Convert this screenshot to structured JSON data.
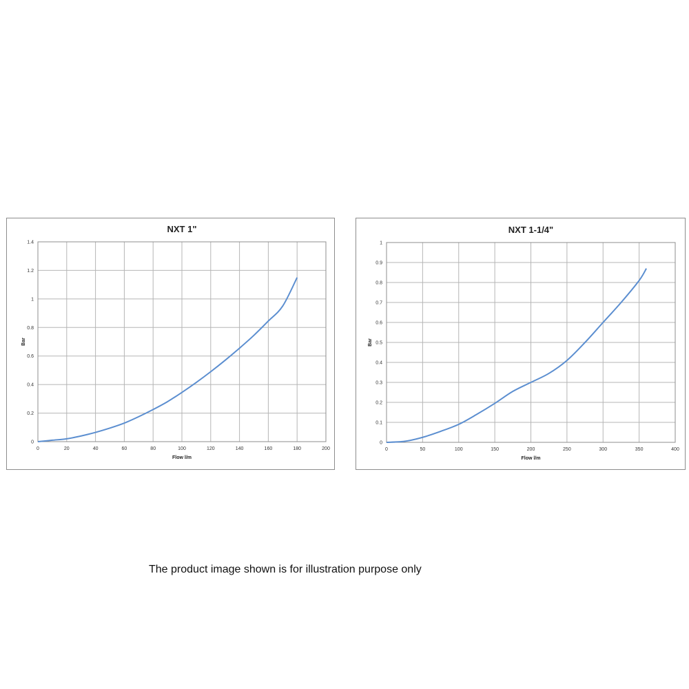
{
  "chart_data": [
    {
      "type": "line",
      "title": "NXT 1\"",
      "xlabel": "Flow l/m",
      "ylabel": "Bar",
      "xlim": [
        0,
        200
      ],
      "ylim": [
        0,
        1.4
      ],
      "x_ticks": [
        0,
        20,
        40,
        60,
        80,
        100,
        120,
        140,
        160,
        180,
        200
      ],
      "y_ticks": [
        0,
        0.2,
        0.4,
        0.6,
        0.8,
        1,
        1.2,
        1.4
      ],
      "grid": true,
      "series_color": "#5b8ed0",
      "series": [
        {
          "x": [
            0,
            10,
            20,
            30,
            40,
            50,
            60,
            70,
            80,
            90,
            100,
            110,
            120,
            130,
            140,
            150,
            160,
            170,
            180
          ],
          "y": [
            0,
            0.01,
            0.02,
            0.04,
            0.065,
            0.095,
            0.13,
            0.175,
            0.225,
            0.28,
            0.345,
            0.415,
            0.49,
            0.57,
            0.655,
            0.745,
            0.845,
            0.95,
            1.15
          ]
        }
      ]
    },
    {
      "type": "line",
      "title": "NXT 1-1/4\"",
      "xlabel": "Flow l/m",
      "ylabel": "Bar",
      "xlim": [
        0,
        400
      ],
      "ylim": [
        0,
        1
      ],
      "x_ticks": [
        0,
        50,
        100,
        150,
        200,
        250,
        300,
        350,
        400
      ],
      "y_ticks": [
        0,
        0.1,
        0.2,
        0.3,
        0.4,
        0.5,
        0.6,
        0.7,
        0.8,
        0.9,
        1
      ],
      "grid": true,
      "series_color": "#5b8ed0",
      "series": [
        {
          "x": [
            0,
            25,
            50,
            75,
            100,
            125,
            150,
            175,
            200,
            225,
            250,
            275,
            300,
            325,
            350,
            360
          ],
          "y": [
            0,
            0.005,
            0.025,
            0.055,
            0.09,
            0.14,
            0.195,
            0.255,
            0.3,
            0.345,
            0.41,
            0.5,
            0.6,
            0.7,
            0.81,
            0.87
          ]
        }
      ]
    }
  ],
  "footer": {
    "disclaimer": "The product image shown is for illustration purpose only"
  }
}
